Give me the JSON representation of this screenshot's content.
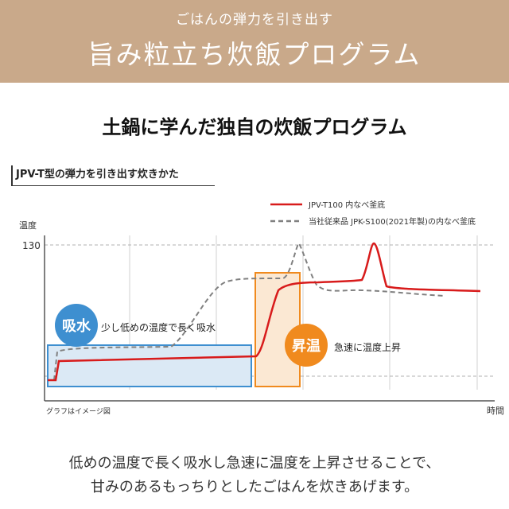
{
  "banner": {
    "subtitle": "ごはんの弾力を引き出す",
    "title": "旨み粒立ち炊飯プログラム"
  },
  "headline": "土鍋に学んだ独自の炊飯プログラム",
  "chart_label": "JPV-T型の弾力を引き出す炊きかた",
  "chart_data": {
    "type": "line",
    "ylabel": "温度",
    "xlabel": "時間",
    "ytick": "130",
    "note": "グラフはイメージ図",
    "series": [
      {
        "name": "JPV-T100 内なべ釜底",
        "color": "#d81b1b",
        "style": "solid"
      },
      {
        "name": "当社従来品 JPK-S100(2021年製)の内なべ釜底",
        "color": "#808080",
        "style": "dashed"
      }
    ],
    "phases": [
      {
        "badge": "吸水",
        "text": "少し低めの温度で長く吸水",
        "color": "#3e8fd0"
      },
      {
        "badge": "昇温",
        "text": "急速に温度上昇",
        "color": "#f08a1e"
      }
    ]
  },
  "caption": {
    "line1": "低めの温度で長く吸水し急速に温度を上昇させることで、",
    "line2": "甘みのあるもっちりとしたごはんを炊きあげます。"
  }
}
